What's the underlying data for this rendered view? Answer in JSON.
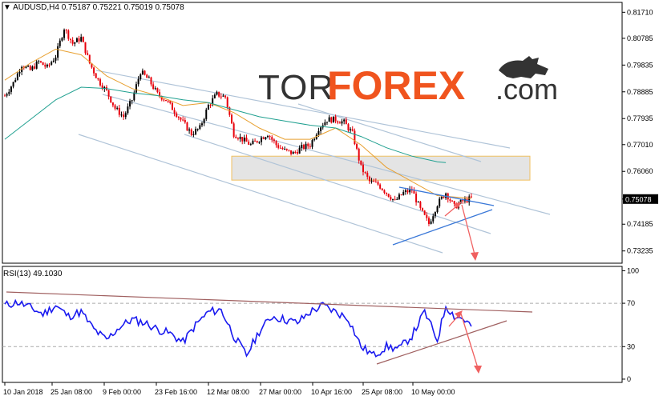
{
  "header": {
    "symbol": "AUDUSD,H4",
    "ohlc": "0.75187 0.75221 0.75019 0.75078",
    "indicator": "RSI(13) 49.1030"
  },
  "brand": {
    "logo_text": "TORFOREX.com"
  },
  "colors": {
    "bull": "#000000",
    "bear": "#e8000b",
    "ma_fast": "#e8a030",
    "ma_slow": "#20a090",
    "channel": "#b0c4d8",
    "zone_fill": "#e4e4e4",
    "zone_border": "#f0c060",
    "triangle": "#3a78d8",
    "arrow": "#f06060",
    "rsi_line": "#1a1af0",
    "rsi_trend": "#a06060",
    "level_bg": "#ffffff"
  },
  "chart_data": [
    {
      "type": "candlestick",
      "title": "AUDUSD,H4",
      "y_ticks": [
        "0.81710",
        "0.80785",
        "0.79835",
        "0.78885",
        "0.77935",
        "0.77010",
        "0.76060",
        "0.75078",
        "0.74185",
        "0.73235"
      ],
      "ylim": [
        0.728,
        0.8206
      ],
      "current_price": 0.75078,
      "x_tick_labels": [
        "10 Jan 2018",
        "25 Jan 08:00",
        "9 Feb 00:00",
        "23 Feb 16:00",
        "12 Mar 08:00",
        "27 Mar 00:00",
        "10 Apr 16:00",
        "25 Apr 08:00",
        "10 May 00:00"
      ],
      "close_path": [
        [
          0,
          0.7875
        ],
        [
          4,
          0.792
        ],
        [
          8,
          0.7985
        ],
        [
          12,
          0.7965
        ],
        [
          16,
          0.7995
        ],
        [
          20,
          0.7975
        ],
        [
          24,
          0.8015
        ],
        [
          28,
          0.8115
        ],
        [
          32,
          0.806
        ],
        [
          36,
          0.808
        ],
        [
          40,
          0.799
        ],
        [
          44,
          0.793
        ],
        [
          48,
          0.789
        ],
        [
          52,
          0.783
        ],
        [
          56,
          0.78
        ],
        [
          60,
          0.786
        ],
        [
          64,
          0.796
        ],
        [
          68,
          0.793
        ],
        [
          72,
          0.788
        ],
        [
          76,
          0.786
        ],
        [
          80,
          0.782
        ],
        [
          84,
          0.778
        ],
        [
          88,
          0.774
        ],
        [
          92,
          0.776
        ],
        [
          96,
          0.784
        ],
        [
          100,
          0.788
        ],
        [
          104,
          0.787
        ],
        [
          108,
          0.774
        ],
        [
          112,
          0.772
        ],
        [
          116,
          0.77
        ],
        [
          120,
          0.772
        ],
        [
          124,
          0.774
        ],
        [
          128,
          0.77
        ],
        [
          132,
          0.768
        ],
        [
          136,
          0.767
        ],
        [
          140,
          0.769
        ],
        [
          144,
          0.77
        ],
        [
          148,
          0.776
        ],
        [
          152,
          0.779
        ],
        [
          156,
          0.779
        ],
        [
          160,
          0.778
        ],
        [
          164,
          0.774
        ],
        [
          168,
          0.762
        ],
        [
          172,
          0.757
        ],
        [
          176,
          0.756
        ],
        [
          180,
          0.753
        ],
        [
          184,
          0.75
        ],
        [
          188,
          0.753
        ],
        [
          192,
          0.754
        ],
        [
          196,
          0.747
        ],
        [
          200,
          0.742
        ],
        [
          204,
          0.749
        ],
        [
          208,
          0.753
        ],
        [
          212,
          0.748
        ],
        [
          216,
          0.75
        ],
        [
          220,
          0.751
        ]
      ],
      "ma_fast": [
        [
          0,
          0.793
        ],
        [
          12,
          0.799
        ],
        [
          24,
          0.804
        ],
        [
          36,
          0.802
        ],
        [
          48,
          0.7945
        ],
        [
          60,
          0.79
        ],
        [
          72,
          0.7875
        ],
        [
          84,
          0.784
        ],
        [
          96,
          0.785
        ],
        [
          108,
          0.7815
        ],
        [
          120,
          0.776
        ],
        [
          132,
          0.772
        ],
        [
          144,
          0.772
        ],
        [
          156,
          0.776
        ],
        [
          168,
          0.77
        ],
        [
          180,
          0.762
        ],
        [
          192,
          0.757
        ],
        [
          204,
          0.752
        ],
        [
          220,
          0.751
        ]
      ],
      "ma_slow": [
        [
          0,
          0.772
        ],
        [
          12,
          0.779
        ],
        [
          24,
          0.786
        ],
        [
          36,
          0.7905
        ],
        [
          48,
          0.79
        ],
        [
          60,
          0.7885
        ],
        [
          72,
          0.7875
        ],
        [
          84,
          0.786
        ],
        [
          96,
          0.785
        ],
        [
          108,
          0.7825
        ],
        [
          120,
          0.78
        ],
        [
          132,
          0.7785
        ],
        [
          144,
          0.777
        ],
        [
          156,
          0.776
        ],
        [
          168,
          0.773
        ],
        [
          180,
          0.769
        ],
        [
          192,
          0.766
        ],
        [
          204,
          0.764
        ],
        [
          208,
          0.7637
        ]
      ],
      "zone": {
        "from": 0.7575,
        "to": 0.766
      }
    },
    {
      "type": "line",
      "title": "RSI(13) 49.1030",
      "y_ticks": [
        "100",
        "70",
        "30",
        "0"
      ],
      "ylim": [
        -3,
        104
      ],
      "levels": [
        70,
        30
      ],
      "current_value": 49.103,
      "rsi_path": [
        [
          0,
          68
        ],
        [
          6,
          71
        ],
        [
          12,
          66
        ],
        [
          18,
          60
        ],
        [
          24,
          68
        ],
        [
          30,
          58
        ],
        [
          36,
          62
        ],
        [
          42,
          46
        ],
        [
          48,
          36
        ],
        [
          54,
          48
        ],
        [
          60,
          55
        ],
        [
          66,
          52
        ],
        [
          72,
          46
        ],
        [
          78,
          42
        ],
        [
          84,
          34
        ],
        [
          90,
          50
        ],
        [
          96,
          62
        ],
        [
          102,
          64
        ],
        [
          108,
          40
        ],
        [
          114,
          22
        ],
        [
          120,
          44
        ],
        [
          126,
          58
        ],
        [
          132,
          55
        ],
        [
          138,
          52
        ],
        [
          144,
          62
        ],
        [
          150,
          68
        ],
        [
          156,
          62
        ],
        [
          162,
          56
        ],
        [
          168,
          30
        ],
        [
          174,
          22
        ],
        [
          180,
          30
        ],
        [
          186,
          28
        ],
        [
          192,
          40
        ],
        [
          198,
          62
        ],
        [
          204,
          36
        ],
        [
          208,
          68
        ],
        [
          212,
          58
        ],
        [
          216,
          56
        ],
        [
          220,
          49
        ]
      ]
    }
  ]
}
